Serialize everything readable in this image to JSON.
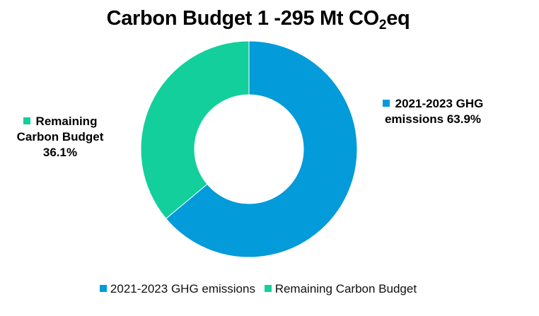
{
  "chart_data": {
    "type": "pie",
    "variant": "donut",
    "title": {
      "main": "Carbon Budget 1 -295 Mt CO",
      "sub": "2",
      "tail": "eq"
    },
    "categories": [
      "2021-2023 GHG emissions",
      "Remaining Carbon Budget"
    ],
    "values": [
      63.9,
      36.1
    ],
    "unit": "%",
    "colors": [
      "#039BD9",
      "#13CF9B"
    ],
    "data_labels": [
      {
        "line1": "2021-2023 GHG",
        "line2": "emissions 63.9%"
      },
      {
        "line1": "Remaining",
        "line2": "Carbon Budget",
        "line3": "36.1%"
      }
    ],
    "legend": {
      "position": "bottom",
      "entries": [
        "2021-2023 GHG emissions",
        "Remaining Carbon Budget"
      ]
    }
  }
}
